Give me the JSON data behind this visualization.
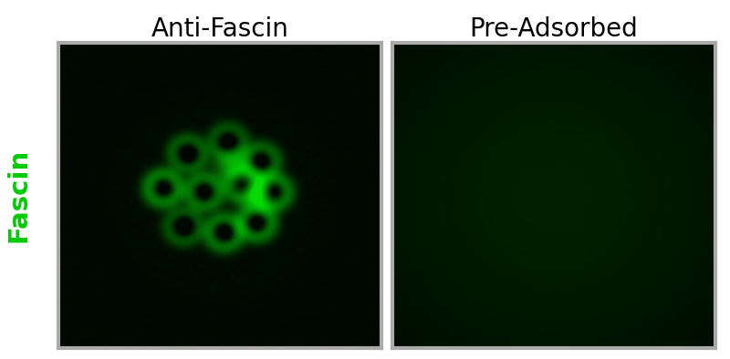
{
  "title_left": "Anti-Fascin",
  "title_right": "Pre-Adsorbed",
  "ylabel": "Fascin",
  "ylabel_color": "#00cc00",
  "title_fontsize": 20,
  "ylabel_fontsize": 21,
  "bg_color": "#ffffff",
  "border_color": "#aaaaaa",
  "fig_width": 8.0,
  "fig_height": 3.94
}
